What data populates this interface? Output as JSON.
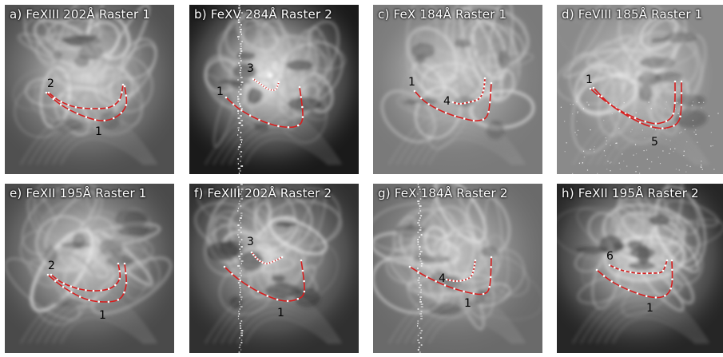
{
  "panels": [
    {
      "title": "a) FeXIII 202Å Raster 1",
      "theme": "a",
      "loops": [
        {
          "label": "2",
          "labelPos": "start"
        },
        {
          "label": "1",
          "labelPos": "bottom"
        }
      ]
    },
    {
      "title": "b) FeXV 284Å Raster 2",
      "theme": "b",
      "loops": [
        {
          "label": "3",
          "labelPos": "start"
        },
        {
          "label": "1",
          "labelPos": "start"
        }
      ]
    },
    {
      "title": "c) FeX 184Å Raster 1",
      "theme": "c",
      "loops": [
        {
          "label": "1",
          "labelPos": "start"
        },
        {
          "label": "4",
          "labelPos": "start"
        }
      ]
    },
    {
      "title": "d) FeVIII 185Å Raster 1",
      "theme": "d",
      "loops": [
        {
          "label": "1",
          "labelPos": "start"
        },
        {
          "label": "5",
          "labelPos": "bottom"
        }
      ]
    },
    {
      "title": "e) FeXII 195Å Raster 1",
      "theme": "e",
      "loops": [
        {
          "label": "2",
          "labelPos": "start"
        },
        {
          "label": "1",
          "labelPos": "bottom"
        }
      ]
    },
    {
      "title": "f) FeXIII 202Å Raster 2",
      "theme": "f",
      "loops": [
        {
          "label": "3",
          "labelPos": "start"
        },
        {
          "label": "1",
          "labelPos": "bottom"
        }
      ]
    },
    {
      "title": "g) FeX 184Å Raster 2",
      "theme": "g",
      "loops": [
        {
          "label": "4",
          "labelPos": "start"
        },
        {
          "label": "1",
          "labelPos": "bottom"
        }
      ]
    },
    {
      "title": "h) FeXII 195Å Raster 2",
      "theme": "h",
      "loops": [
        {
          "label": "6",
          "labelPos": "start"
        },
        {
          "label": "1",
          "labelPos": "bottom"
        }
      ]
    }
  ],
  "colors": {
    "loop_line": "#d81e1e",
    "loop_dot": "#ffffff",
    "label": "#000000",
    "title": "#ffffff"
  }
}
